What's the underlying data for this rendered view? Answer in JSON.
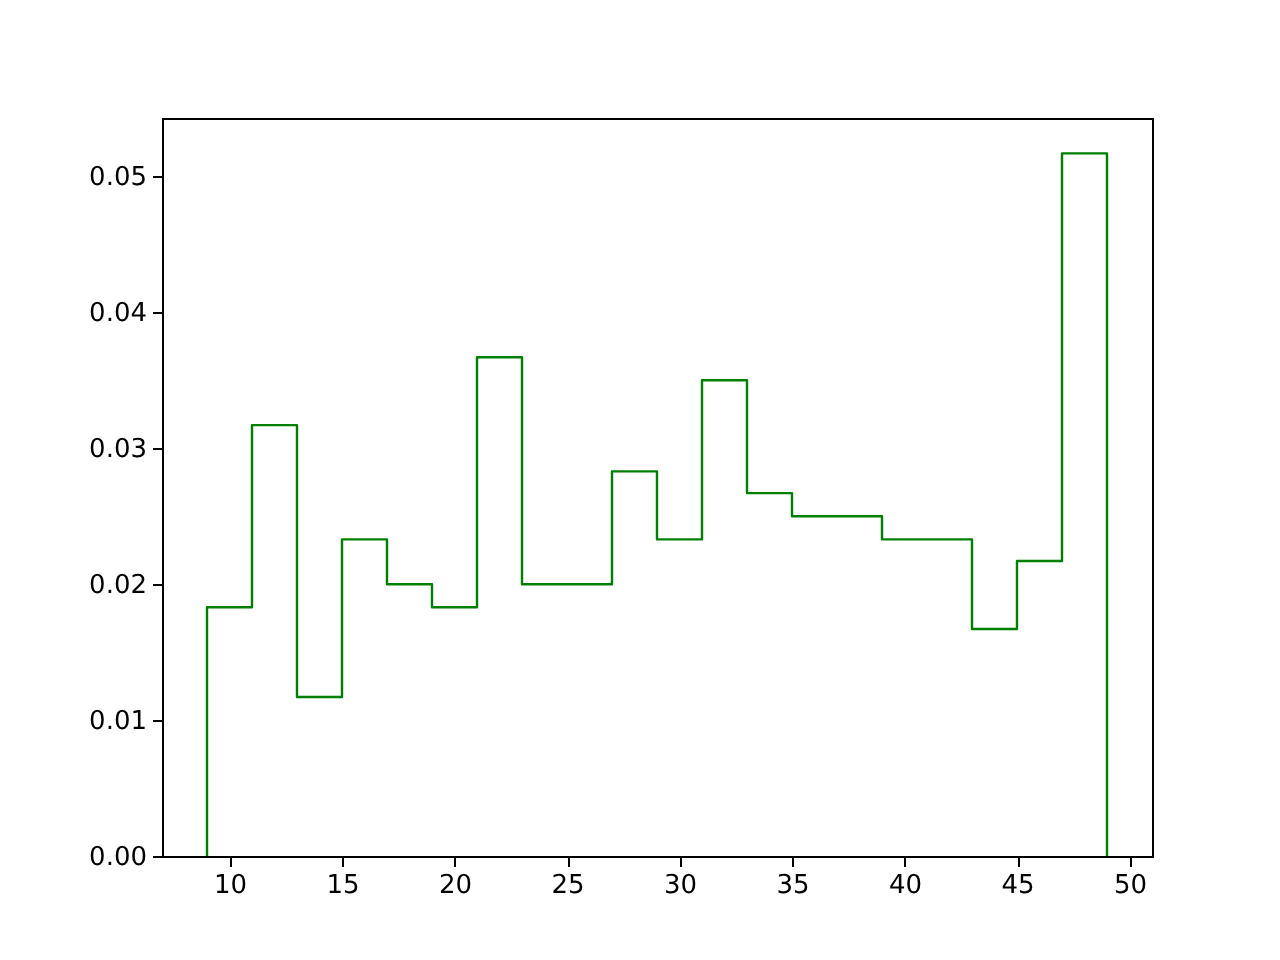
{
  "chart_data": {
    "type": "histogram",
    "bins": [
      9,
      11,
      13,
      15,
      17,
      19,
      21,
      23,
      25,
      27,
      29,
      31,
      33,
      35,
      37,
      39,
      41,
      43,
      45,
      47,
      49
    ],
    "values": [
      0.0183,
      0.0317,
      0.0117,
      0.0233,
      0.02,
      0.0183,
      0.0367,
      0.02,
      0.02,
      0.0283,
      0.0233,
      0.035,
      0.0267,
      0.025,
      0.025,
      0.0233,
      0.0233,
      0.0167,
      0.0217,
      0.0517
    ],
    "color": "#008000",
    "xlim": [
      7,
      51
    ],
    "xticks": [
      10,
      15,
      20,
      25,
      30,
      35,
      40,
      45,
      50
    ],
    "ylim": [
      0,
      0.0543
    ],
    "yticks": [
      {
        "value": 0,
        "label": "0.00"
      },
      {
        "value": 0.01,
        "label": "0.01"
      },
      {
        "value": 0.02,
        "label": "0.02"
      },
      {
        "value": 0.03,
        "label": "0.03"
      },
      {
        "value": 0.04,
        "label": "0.04"
      },
      {
        "value": 0.05,
        "label": "0.05"
      }
    ],
    "grid": false
  }
}
